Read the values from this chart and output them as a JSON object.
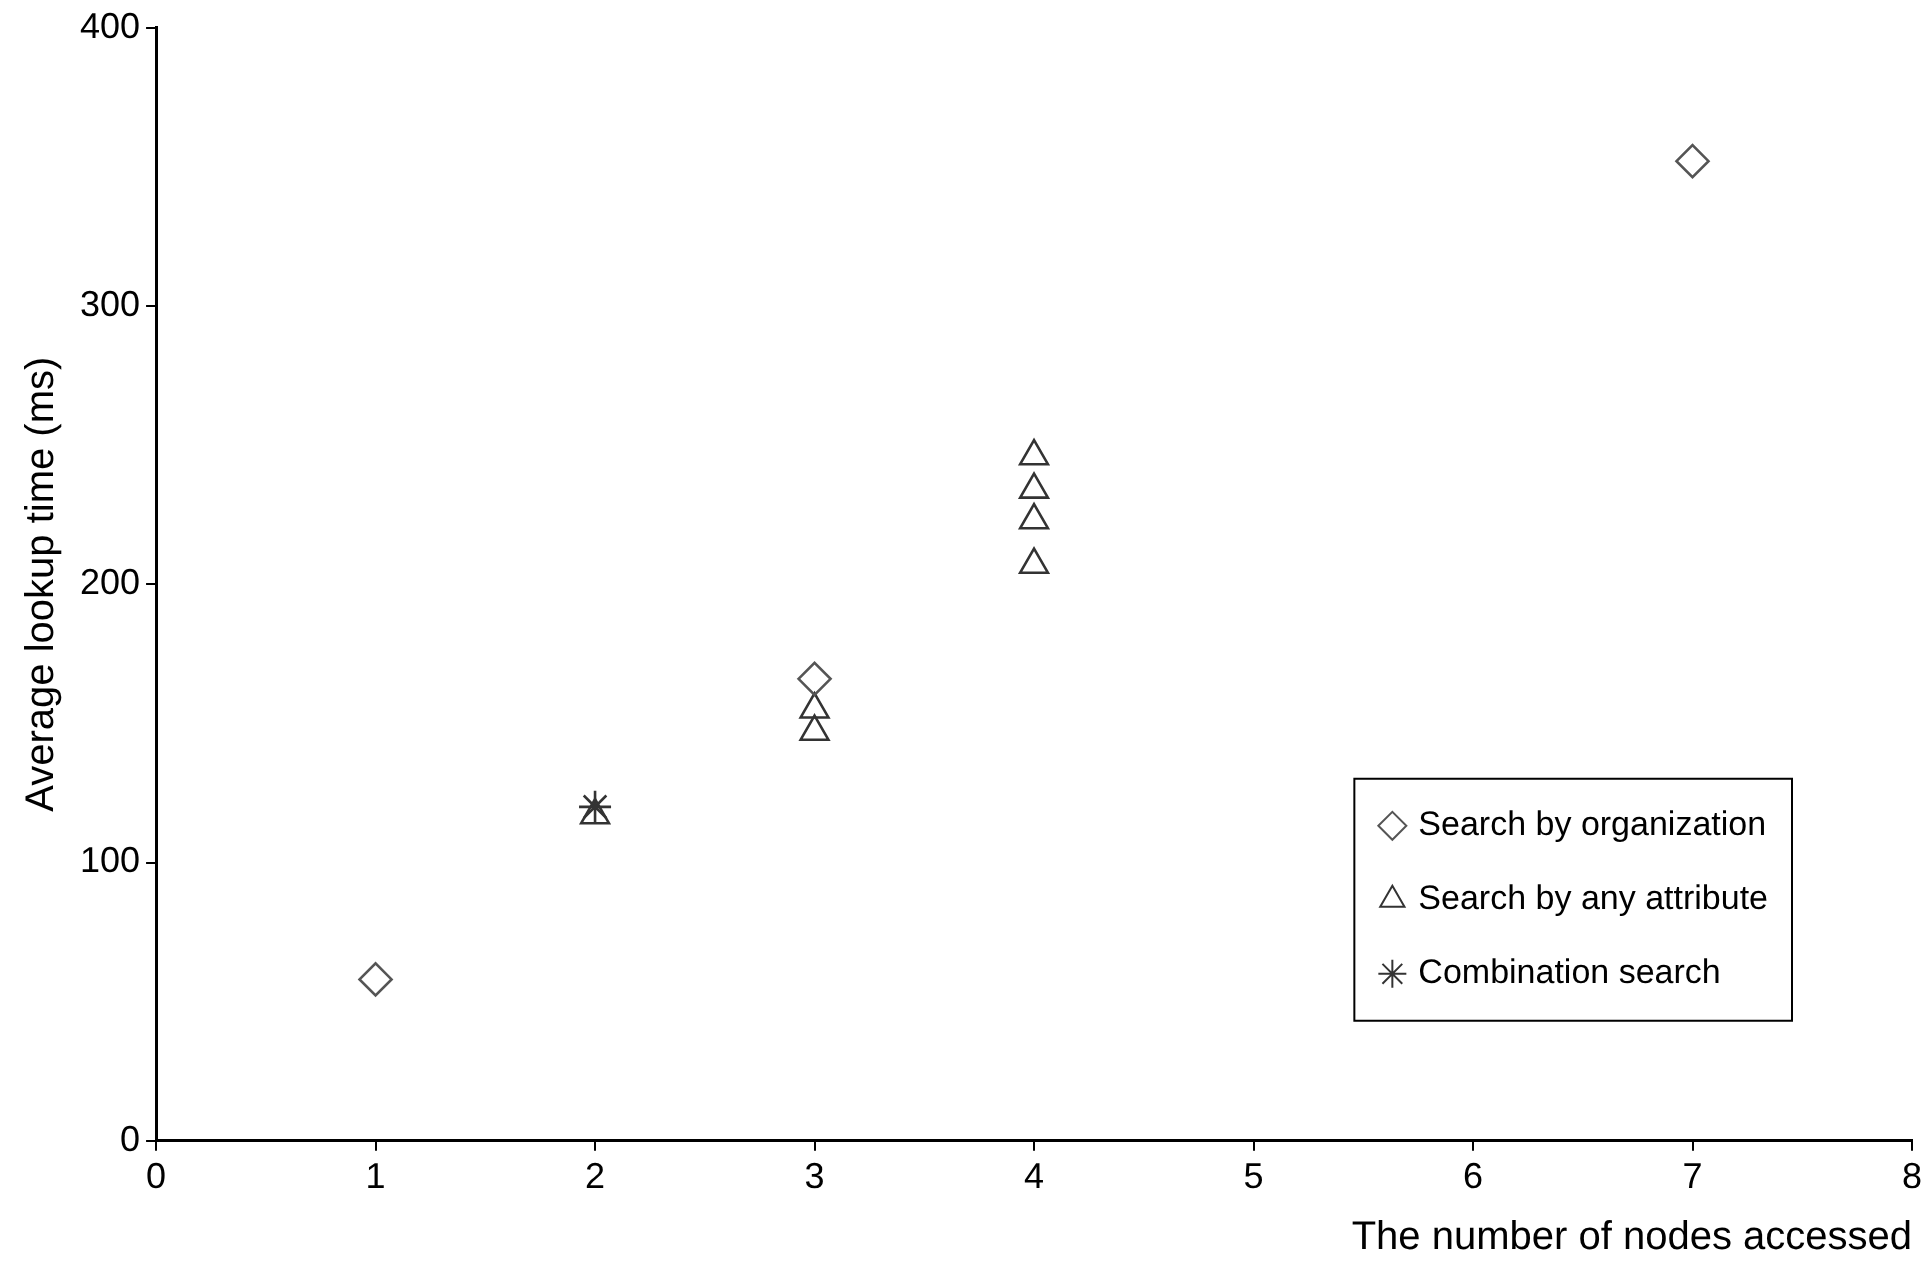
{
  "chart_data": {
    "type": "scatter",
    "xlabel": "The number of nodes accessed",
    "ylabel": "Average lookup time (ms)",
    "xlim": [
      0,
      8
    ],
    "xticks": [
      0,
      1,
      2,
      3,
      4,
      5,
      6,
      7,
      8
    ],
    "ylim": [
      0,
      400
    ],
    "yticks": [
      0,
      100,
      200,
      300,
      400
    ],
    "grid": false,
    "legend": "bottom right",
    "series": [
      {
        "name": "Search by organization",
        "color": "#555555",
        "marker": "diamond",
        "x": [
          1,
          3,
          7
        ],
        "values": [
          58,
          166,
          352
        ]
      },
      {
        "name": "Search by any attribute",
        "color": "#333333",
        "marker": "triangle",
        "x": [
          2,
          3,
          3,
          4,
          4,
          4,
          4
        ],
        "values": [
          117,
          155,
          147,
          246,
          234,
          223,
          207
        ]
      },
      {
        "name": "Combination search",
        "color": "#333333",
        "marker": "cross",
        "x": [
          2
        ],
        "values": [
          120
        ]
      }
    ]
  }
}
